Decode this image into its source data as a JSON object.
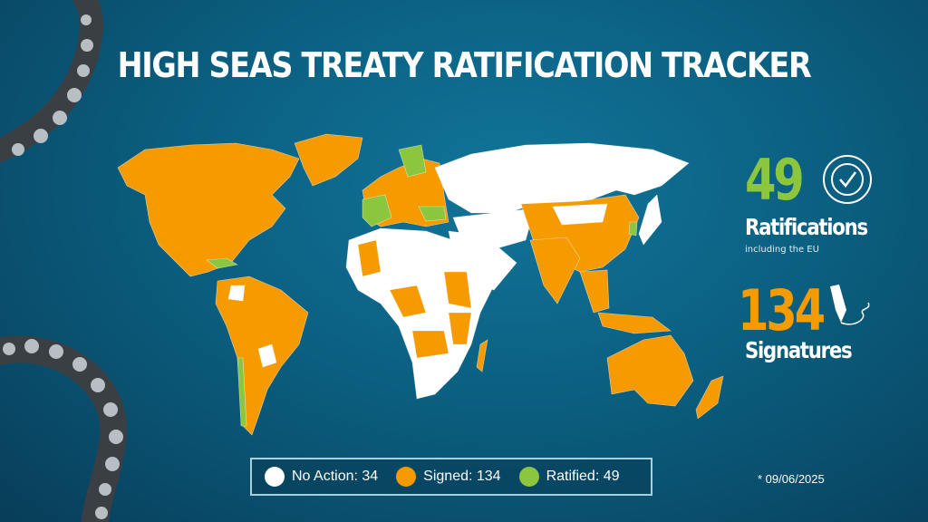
{
  "title": "HIGH SEAS TREATY RATIFICATION TRACKER",
  "colors": {
    "no_action": "#ffffff",
    "signed": "#f59b00",
    "ratified": "#8cc63f",
    "background": "#0b5f80"
  },
  "stats": {
    "ratifications": {
      "value": "49",
      "label": "Ratifications",
      "note": "including the EU",
      "icon": "check-seal-icon"
    },
    "signatures": {
      "value": "134",
      "label": "Signatures",
      "icon": "fountain-pen-icon"
    }
  },
  "legend": [
    {
      "label": "No Action: 34",
      "color": "#ffffff"
    },
    {
      "label": "Signed: 134",
      "color": "#f59b00"
    },
    {
      "label": "Ratified: 49",
      "color": "#8cc63f"
    }
  ],
  "date": "* 09/06/2025"
}
